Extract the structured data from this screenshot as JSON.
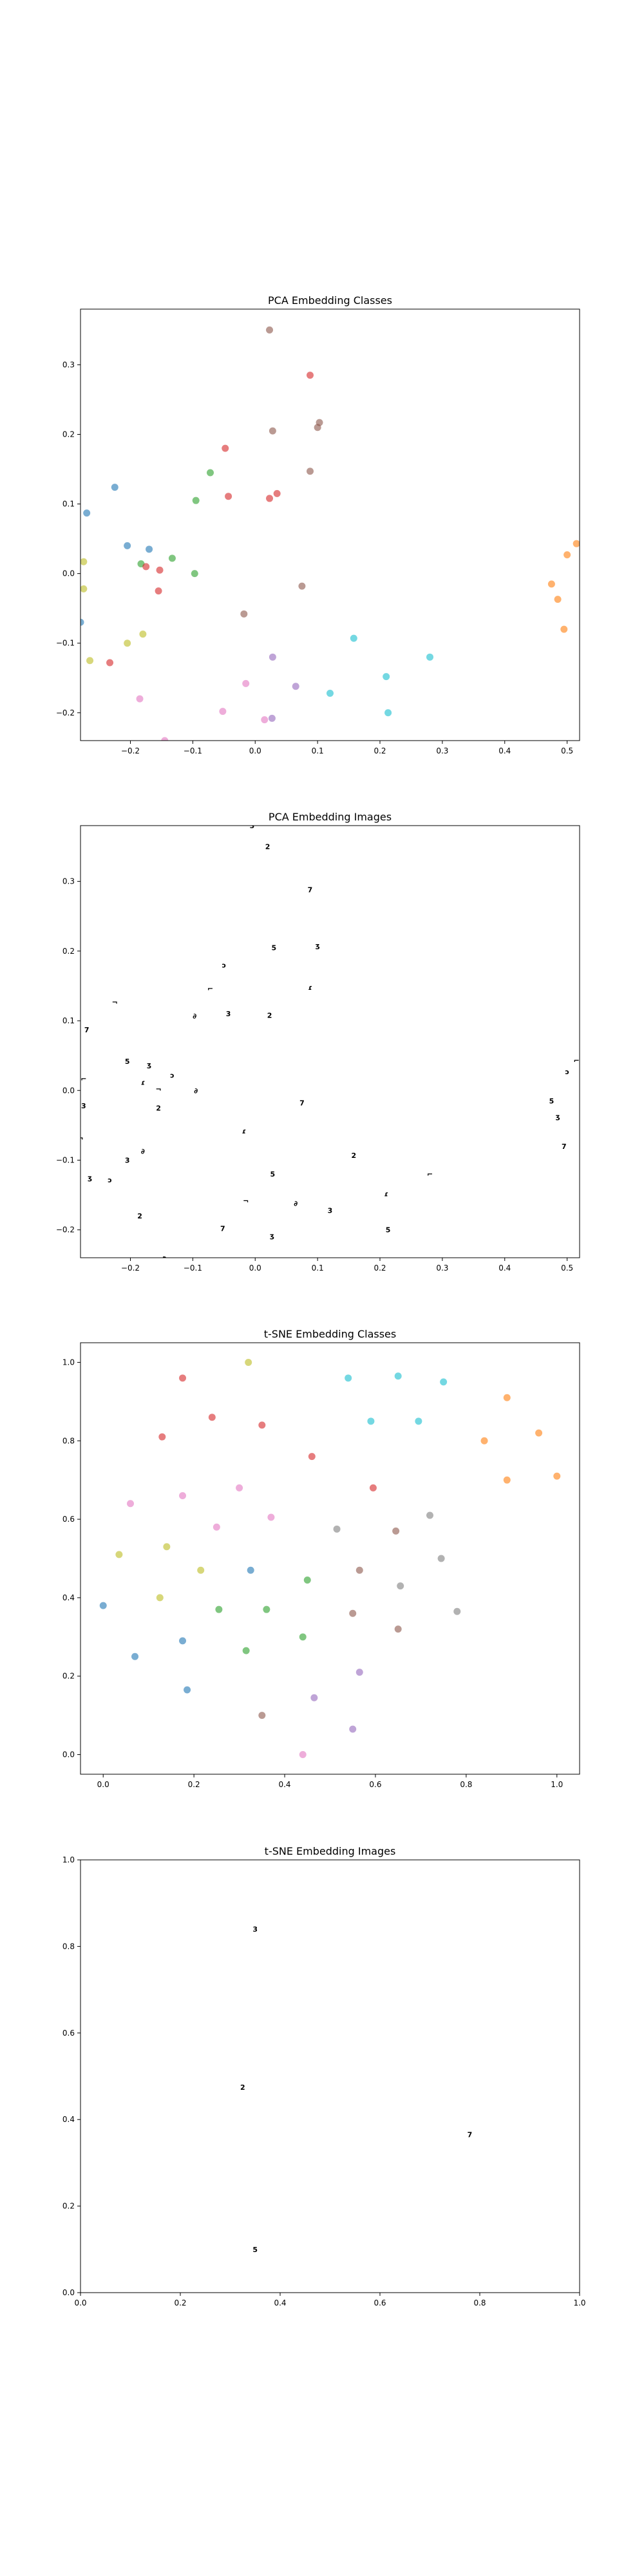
{
  "colors": {
    "classes": [
      "#1f77b4",
      "#ff7f0e",
      "#2ca02c",
      "#d62728",
      "#9467bd",
      "#8c564b",
      "#e377c2",
      "#7f7f7f",
      "#bcbd22",
      "#17becf"
    ],
    "image_glyph": "#000000"
  },
  "chart_data": [
    {
      "type": "scatter",
      "title": "PCA Embedding Classes",
      "xlim": [
        -0.28,
        0.52
      ],
      "ylim": [
        -0.24,
        0.38
      ],
      "xticks": [
        -0.2,
        -0.1,
        0.0,
        0.1,
        0.2,
        0.3,
        0.4,
        0.5
      ],
      "xtick_labels": [
        "−0.2",
        "−0.1",
        "0.0",
        "0.1",
        "0.2",
        "0.3",
        "0.4",
        "0.5"
      ],
      "yticks": [
        -0.2,
        -0.1,
        0.0,
        0.1,
        0.2,
        0.3
      ],
      "ytick_labels": [
        "−0.2",
        "−0.1",
        "0.0",
        "0.1",
        "0.2",
        "0.3"
      ],
      "grid": false,
      "points": [
        {
          "x": -0.28,
          "y": -0.07,
          "c": 0
        },
        {
          "x": -0.27,
          "y": 0.087,
          "c": 0
        },
        {
          "x": -0.225,
          "y": 0.124,
          "c": 0
        },
        {
          "x": -0.205,
          "y": 0.04,
          "c": 0
        },
        {
          "x": -0.17,
          "y": 0.035,
          "c": 0
        },
        {
          "x": 0.475,
          "y": -0.015,
          "c": 1
        },
        {
          "x": 0.485,
          "y": -0.037,
          "c": 1
        },
        {
          "x": 0.495,
          "y": -0.08,
          "c": 1
        },
        {
          "x": 0.5,
          "y": 0.027,
          "c": 1
        },
        {
          "x": 0.515,
          "y": 0.043,
          "c": 1
        },
        {
          "x": -0.133,
          "y": 0.022,
          "c": 2
        },
        {
          "x": -0.183,
          "y": 0.014,
          "c": 2
        },
        {
          "x": -0.097,
          "y": 0.0,
          "c": 2
        },
        {
          "x": -0.095,
          "y": 0.105,
          "c": 2
        },
        {
          "x": -0.072,
          "y": 0.145,
          "c": 2
        },
        {
          "x": -0.048,
          "y": 0.18,
          "c": 3
        },
        {
          "x": -0.043,
          "y": 0.111,
          "c": 3
        },
        {
          "x": 0.023,
          "y": 0.108,
          "c": 3
        },
        {
          "x": 0.035,
          "y": 0.115,
          "c": 3
        },
        {
          "x": 0.088,
          "y": 0.285,
          "c": 3
        },
        {
          "x": -0.175,
          "y": 0.01,
          "c": 3
        },
        {
          "x": -0.153,
          "y": 0.005,
          "c": 3
        },
        {
          "x": -0.155,
          "y": -0.025,
          "c": 3
        },
        {
          "x": -0.233,
          "y": -0.128,
          "c": 3
        },
        {
          "x": 0.028,
          "y": -0.12,
          "c": 4
        },
        {
          "x": 0.065,
          "y": -0.162,
          "c": 4
        },
        {
          "x": 0.027,
          "y": -0.208,
          "c": 4
        },
        {
          "x": 0.023,
          "y": 0.35,
          "c": 5
        },
        {
          "x": 0.1,
          "y": 0.21,
          "c": 5
        },
        {
          "x": 0.103,
          "y": 0.217,
          "c": 5
        },
        {
          "x": 0.028,
          "y": 0.205,
          "c": 5
        },
        {
          "x": 0.088,
          "y": 0.147,
          "c": 5
        },
        {
          "x": 0.075,
          "y": -0.018,
          "c": 5
        },
        {
          "x": -0.018,
          "y": -0.058,
          "c": 5
        },
        {
          "x": -0.185,
          "y": -0.18,
          "c": 6
        },
        {
          "x": -0.145,
          "y": -0.24,
          "c": 6
        },
        {
          "x": -0.052,
          "y": -0.198,
          "c": 6
        },
        {
          "x": -0.015,
          "y": -0.158,
          "c": 6
        },
        {
          "x": 0.015,
          "y": -0.21,
          "c": 6
        },
        {
          "x": -0.275,
          "y": 0.017,
          "c": 8
        },
        {
          "x": -0.275,
          "y": -0.022,
          "c": 8
        },
        {
          "x": -0.265,
          "y": -0.125,
          "c": 8
        },
        {
          "x": -0.205,
          "y": -0.1,
          "c": 8
        },
        {
          "x": -0.18,
          "y": -0.087,
          "c": 8
        },
        {
          "x": 0.158,
          "y": -0.093,
          "c": 9
        },
        {
          "x": 0.12,
          "y": -0.172,
          "c": 9
        },
        {
          "x": 0.21,
          "y": -0.148,
          "c": 9
        },
        {
          "x": 0.213,
          "y": -0.2,
          "c": 9
        },
        {
          "x": 0.28,
          "y": -0.12,
          "c": 9
        }
      ]
    },
    {
      "type": "scatter",
      "title": "PCA Embedding Images",
      "xlim": [
        -0.28,
        0.52
      ],
      "ylim": [
        -0.24,
        0.38
      ],
      "xticks": [
        -0.2,
        -0.1,
        0.0,
        0.1,
        0.2,
        0.3,
        0.4,
        0.5
      ],
      "xtick_labels": [
        "−0.2",
        "−0.1",
        "0.0",
        "0.1",
        "0.2",
        "0.3",
        "0.4",
        "0.5"
      ],
      "yticks": [
        -0.2,
        -0.1,
        0.0,
        0.1,
        0.2,
        0.3
      ],
      "ytick_labels": [
        "−0.2",
        "−0.1",
        "0.0",
        "0.1",
        "0.2",
        "0.3"
      ],
      "grid": false,
      "points": [
        {
          "x": -0.005,
          "y": 0.38
        },
        {
          "x": 0.02,
          "y": 0.35
        },
        {
          "x": 0.088,
          "y": 0.288
        },
        {
          "x": 0.03,
          "y": 0.205
        },
        {
          "x": 0.1,
          "y": 0.208
        },
        {
          "x": -0.05,
          "y": 0.18
        },
        {
          "x": -0.072,
          "y": 0.146
        },
        {
          "x": 0.088,
          "y": 0.148
        },
        {
          "x": -0.225,
          "y": 0.127
        },
        {
          "x": -0.097,
          "y": 0.107
        },
        {
          "x": -0.043,
          "y": 0.11
        },
        {
          "x": 0.023,
          "y": 0.108
        },
        {
          "x": -0.27,
          "y": 0.087
        },
        {
          "x": -0.205,
          "y": 0.042
        },
        {
          "x": -0.17,
          "y": 0.037
        },
        {
          "x": -0.133,
          "y": 0.022
        },
        {
          "x": -0.275,
          "y": 0.017
        },
        {
          "x": -0.18,
          "y": 0.012
        },
        {
          "x": -0.155,
          "y": 0.002
        },
        {
          "x": -0.095,
          "y": 0.0
        },
        {
          "x": -0.275,
          "y": -0.022
        },
        {
          "x": -0.155,
          "y": -0.025
        },
        {
          "x": 0.075,
          "y": -0.018
        },
        {
          "x": 0.475,
          "y": -0.015
        },
        {
          "x": 0.485,
          "y": -0.037
        },
        {
          "x": 0.5,
          "y": 0.027
        },
        {
          "x": 0.515,
          "y": 0.043
        },
        {
          "x": -0.018,
          "y": -0.058
        },
        {
          "x": -0.28,
          "y": -0.068
        },
        {
          "x": -0.18,
          "y": -0.087
        },
        {
          "x": -0.205,
          "y": -0.1
        },
        {
          "x": 0.158,
          "y": -0.093
        },
        {
          "x": 0.495,
          "y": -0.08
        },
        {
          "x": 0.028,
          "y": -0.12
        },
        {
          "x": -0.265,
          "y": -0.125
        },
        {
          "x": -0.233,
          "y": -0.128
        },
        {
          "x": 0.28,
          "y": -0.12
        },
        {
          "x": 0.21,
          "y": -0.148
        },
        {
          "x": -0.015,
          "y": -0.158
        },
        {
          "x": 0.065,
          "y": -0.162
        },
        {
          "x": 0.12,
          "y": -0.172
        },
        {
          "x": -0.185,
          "y": -0.18
        },
        {
          "x": -0.052,
          "y": -0.198
        },
        {
          "x": 0.213,
          "y": -0.2
        },
        {
          "x": 0.027,
          "y": -0.208
        },
        {
          "x": -0.145,
          "y": -0.24
        }
      ]
    },
    {
      "type": "scatter",
      "title": "t-SNE Embedding Classes",
      "xlim": [
        -0.05,
        1.05
      ],
      "ylim": [
        -0.05,
        1.05
      ],
      "xticks": [
        0.0,
        0.2,
        0.4,
        0.6,
        0.8,
        1.0
      ],
      "xtick_labels": [
        "0.0",
        "0.2",
        "0.4",
        "0.6",
        "0.8",
        "1.0"
      ],
      "yticks": [
        0.0,
        0.2,
        0.4,
        0.6,
        0.8,
        1.0
      ],
      "ytick_labels": [
        "0.0",
        "0.2",
        "0.4",
        "0.6",
        "0.8",
        "1.0"
      ],
      "grid": false,
      "points": [
        {
          "x": 0.0,
          "y": 0.38,
          "c": 0
        },
        {
          "x": 0.07,
          "y": 0.25,
          "c": 0
        },
        {
          "x": 0.175,
          "y": 0.29,
          "c": 0
        },
        {
          "x": 0.185,
          "y": 0.165,
          "c": 0
        },
        {
          "x": 0.325,
          "y": 0.47,
          "c": 0
        },
        {
          "x": 0.84,
          "y": 0.8,
          "c": 1
        },
        {
          "x": 0.89,
          "y": 0.91,
          "c": 1
        },
        {
          "x": 0.89,
          "y": 0.7,
          "c": 1
        },
        {
          "x": 0.96,
          "y": 0.82,
          "c": 1
        },
        {
          "x": 1.0,
          "y": 0.71,
          "c": 1
        },
        {
          "x": 0.255,
          "y": 0.37,
          "c": 2
        },
        {
          "x": 0.315,
          "y": 0.265,
          "c": 2
        },
        {
          "x": 0.36,
          "y": 0.37,
          "c": 2
        },
        {
          "x": 0.44,
          "y": 0.3,
          "c": 2
        },
        {
          "x": 0.45,
          "y": 0.445,
          "c": 2
        },
        {
          "x": 0.175,
          "y": 0.96,
          "c": 3
        },
        {
          "x": 0.13,
          "y": 0.81,
          "c": 3
        },
        {
          "x": 0.24,
          "y": 0.86,
          "c": 3
        },
        {
          "x": 0.35,
          "y": 0.84,
          "c": 3
        },
        {
          "x": 0.46,
          "y": 0.76,
          "c": 3
        },
        {
          "x": 0.595,
          "y": 0.68,
          "c": 3
        },
        {
          "x": 0.465,
          "y": 0.145,
          "c": 4
        },
        {
          "x": 0.565,
          "y": 0.21,
          "c": 4
        },
        {
          "x": 0.55,
          "y": 0.065,
          "c": 4
        },
        {
          "x": 0.35,
          "y": 0.1,
          "c": 5
        },
        {
          "x": 0.55,
          "y": 0.36,
          "c": 5
        },
        {
          "x": 0.565,
          "y": 0.47,
          "c": 5
        },
        {
          "x": 0.645,
          "y": 0.57,
          "c": 5
        },
        {
          "x": 0.65,
          "y": 0.32,
          "c": 5
        },
        {
          "x": 0.06,
          "y": 0.64,
          "c": 6
        },
        {
          "x": 0.175,
          "y": 0.66,
          "c": 6
        },
        {
          "x": 0.25,
          "y": 0.58,
          "c": 6
        },
        {
          "x": 0.3,
          "y": 0.68,
          "c": 6
        },
        {
          "x": 0.37,
          "y": 0.605,
          "c": 6
        },
        {
          "x": 0.44,
          "y": 0.0,
          "c": 6
        },
        {
          "x": 0.515,
          "y": 0.575,
          "c": 7
        },
        {
          "x": 0.655,
          "y": 0.43,
          "c": 7
        },
        {
          "x": 0.72,
          "y": 0.61,
          "c": 7
        },
        {
          "x": 0.745,
          "y": 0.5,
          "c": 7
        },
        {
          "x": 0.78,
          "y": 0.365,
          "c": 7
        },
        {
          "x": 0.035,
          "y": 0.51,
          "c": 8
        },
        {
          "x": 0.125,
          "y": 0.4,
          "c": 8
        },
        {
          "x": 0.14,
          "y": 0.53,
          "c": 8
        },
        {
          "x": 0.215,
          "y": 0.47,
          "c": 8
        },
        {
          "x": 0.32,
          "y": 1.0,
          "c": 8
        },
        {
          "x": 0.54,
          "y": 0.96,
          "c": 9
        },
        {
          "x": 0.59,
          "y": 0.85,
          "c": 9
        },
        {
          "x": 0.65,
          "y": 0.965,
          "c": 9
        },
        {
          "x": 0.695,
          "y": 0.85,
          "c": 9
        },
        {
          "x": 0.75,
          "y": 0.95,
          "c": 9
        }
      ]
    },
    {
      "type": "scatter",
      "title": "t-SNE Embedding Images",
      "xlim": [
        0.0,
        1.0
      ],
      "ylim": [
        0.0,
        1.0
      ],
      "xticks": [
        0.0,
        0.2,
        0.4,
        0.6,
        0.8,
        1.0
      ],
      "xtick_labels": [
        "0.0",
        "0.2",
        "0.4",
        "0.6",
        "0.8",
        "1.0"
      ],
      "yticks": [
        0.0,
        0.2,
        0.4,
        0.6,
        0.8,
        1.0
      ],
      "ytick_labels": [
        "0.0",
        "0.2",
        "0.4",
        "0.6",
        "0.8",
        "1.0"
      ],
      "grid": false,
      "points": [
        {
          "x": 0.35,
          "y": 0.84
        },
        {
          "x": 0.325,
          "y": 0.475
        },
        {
          "x": 0.78,
          "y": 0.365
        },
        {
          "x": 0.35,
          "y": 0.1
        }
      ]
    }
  ]
}
